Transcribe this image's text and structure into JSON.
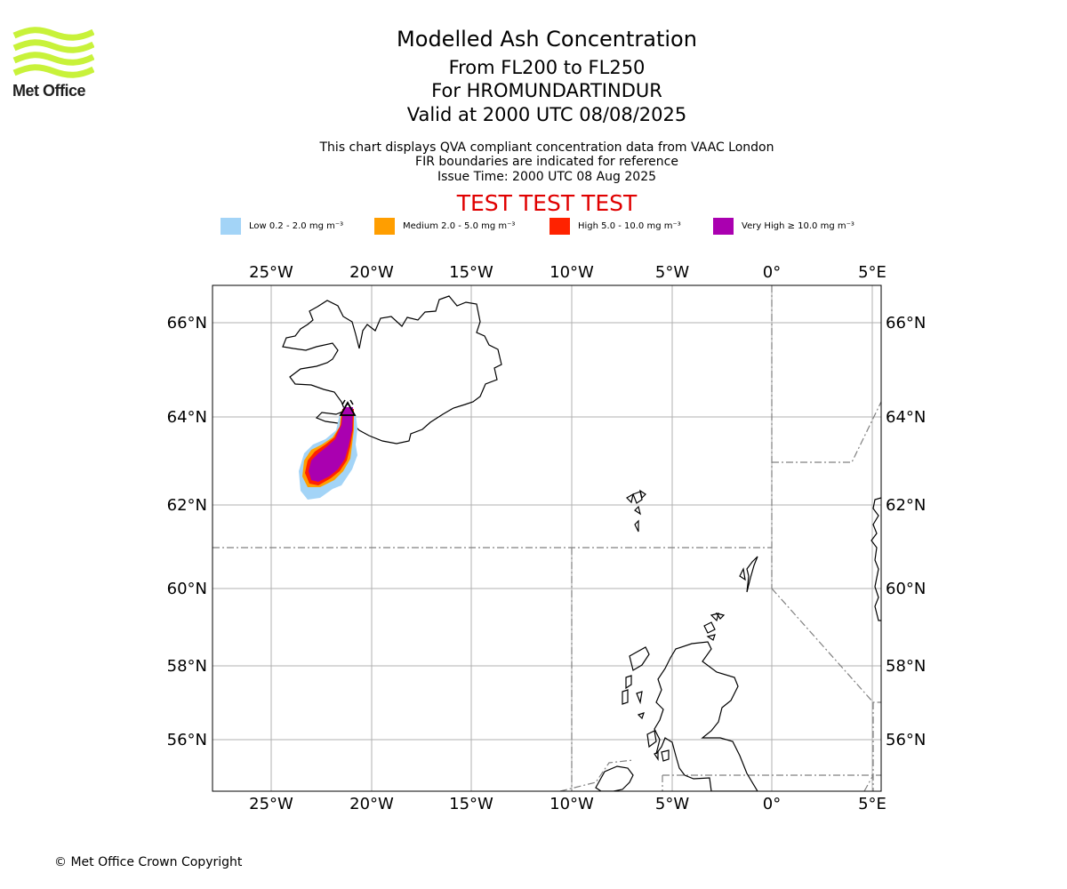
{
  "logo": {
    "text": "Met Office",
    "color": "#c8f23a"
  },
  "header": {
    "title": "Modelled Ash Concentration",
    "levels": "From FL200 to FL250",
    "volcano": "For HROMUNDARTINDUR",
    "valid": "Valid at 2000 UTC 08/08/2025"
  },
  "info": {
    "line1": "This chart displays QVA compliant concentration data from VAAC London",
    "line2": "FIR boundaries are indicated for reference",
    "line3": "Issue Time: 2000 UTC 08 Aug 2025"
  },
  "test_banner": {
    "text": "TEST TEST TEST",
    "color": "#e00000"
  },
  "legend": [
    {
      "label": "Low 0.2 - 2.0 mg m⁻³",
      "color": "#a3d4f7"
    },
    {
      "label": "Medium 2.0 - 5.0 mg m⁻³",
      "color": "#ff9e00"
    },
    {
      "label": "High 5.0 - 10.0 mg m⁻³",
      "color": "#ff2200"
    },
    {
      "label": "Very High  ≥  10.0 mg m⁻³",
      "color": "#aa00b0"
    }
  ],
  "map": {
    "lon_ticks": [
      "25°W",
      "20°W",
      "15°W",
      "10°W",
      "5°W",
      "0°",
      "5°E"
    ],
    "lat_ticks": [
      "66°N",
      "64°N",
      "62°N",
      "60°N",
      "58°N",
      "56°N"
    ],
    "extent": {
      "lon": [
        -28,
        5.5
      ],
      "lat": [
        54.8,
        66.9
      ]
    },
    "volcano_marker": "triangle-icon"
  },
  "footer": {
    "copyright": "© Met Office Crown Copyright"
  }
}
